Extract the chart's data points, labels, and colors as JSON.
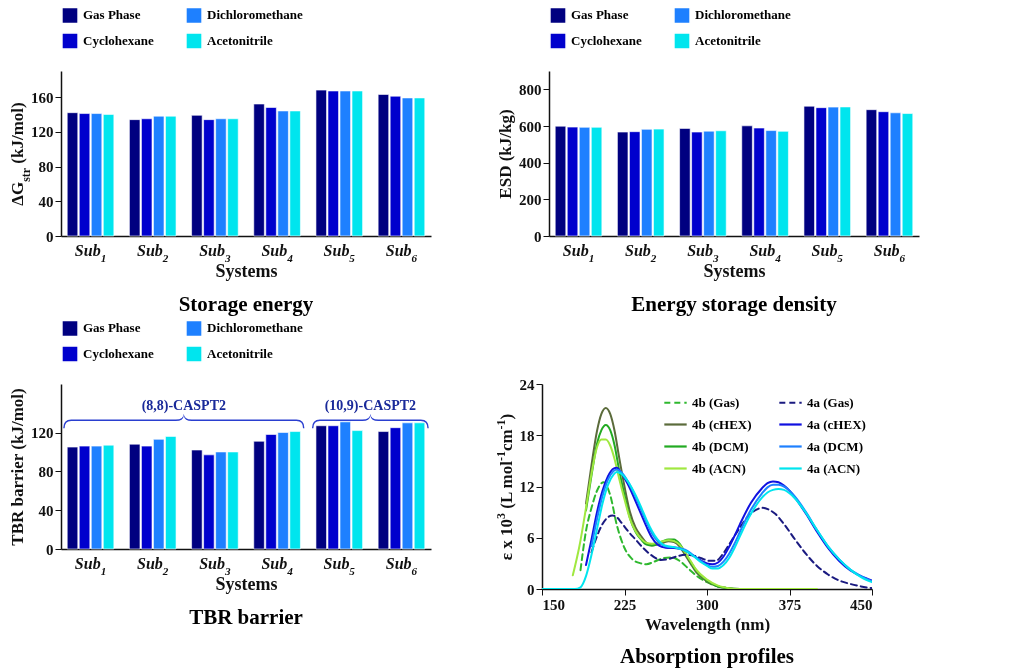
{
  "chart_data": [
    {
      "type": "bar",
      "title": "Storage energy",
      "xlabel": "Systems",
      "ylabel": "ΔG$_{str}$ (kJ/mol)",
      "categories": [
        "Sub$_{1}$",
        "Sub$_{2}$",
        "Sub$_{3}$",
        "Sub$_{4}$",
        "Sub$_{5}$",
        "Sub$_{6}$"
      ],
      "ylim": [
        0,
        190
      ],
      "yticks": [
        0,
        40,
        80,
        120,
        160
      ],
      "legend": "top",
      "series": [
        {
          "name": "Gas Phase",
          "color": "#000080",
          "values": [
            142,
            134,
            139,
            152,
            168,
            163
          ]
        },
        {
          "name": "Cyclohexane",
          "color": "#0000cd",
          "values": [
            141,
            135,
            134,
            148,
            167,
            161
          ]
        },
        {
          "name": "Dichloromethane",
          "color": "#1e80ff",
          "values": [
            141,
            138,
            135,
            144,
            167,
            159
          ]
        },
        {
          "name": "Acetonitrile",
          "color": "#00e5ee",
          "values": [
            140,
            138,
            135,
            144,
            167,
            159
          ]
        }
      ]
    },
    {
      "type": "bar",
      "title": "Energy storage density",
      "xlabel": "Systems",
      "ylabel": "ESD (kJ/kg)",
      "categories": [
        "Sub$_{1}$",
        "Sub$_{2}$",
        "Sub$_{3}$",
        "Sub$_{4}$",
        "Sub$_{5}$",
        "Sub$_{6}$"
      ],
      "ylim": [
        0,
        900
      ],
      "yticks": [
        0,
        200,
        400,
        600,
        800
      ],
      "legend": "top",
      "series": [
        {
          "name": "Gas Phase",
          "color": "#000080",
          "values": [
            599,
            567,
            587,
            601,
            708,
            689
          ]
        },
        {
          "name": "Cyclohexane",
          "color": "#0000cd",
          "values": [
            594,
            569,
            567,
            589,
            700,
            678
          ]
        },
        {
          "name": "Dichloromethane",
          "color": "#1e80ff",
          "values": [
            593,
            582,
            572,
            575,
            703,
            672
          ]
        },
        {
          "name": "Acetonitrile",
          "color": "#00e5ee",
          "values": [
            593,
            583,
            574,
            571,
            704,
            668
          ]
        }
      ]
    },
    {
      "type": "bar",
      "title": "TBR barrier",
      "xlabel": "Systems",
      "ylabel": "TBR barrier (kJ/mol)",
      "categories": [
        "Sub$_{1}$",
        "Sub$_{2}$",
        "Sub$_{3}$",
        "Sub$_{4}$",
        "Sub$_{5}$",
        "Sub$_{6}$"
      ],
      "ylim": [
        0,
        170
      ],
      "yticks": [
        0,
        40,
        80,
        120
      ],
      "legend": "top",
      "annotations": [
        "(8,8)-CASPT2",
        "(10,9)-CASPT2"
      ],
      "series": [
        {
          "name": "Gas Phase",
          "color": "#000080",
          "values": [
            105,
            108,
            102,
            111,
            127,
            121
          ]
        },
        {
          "name": "Cyclohexane",
          "color": "#0000cd",
          "values": [
            106,
            106,
            97,
            118,
            127,
            125
          ]
        },
        {
          "name": "Dichloromethane",
          "color": "#1e80ff",
          "values": [
            106,
            113,
            100,
            120,
            131,
            130
          ]
        },
        {
          "name": "Acetonitrile",
          "color": "#00e5ee",
          "values": [
            107,
            116,
            100,
            121,
            122,
            130
          ]
        }
      ]
    },
    {
      "type": "line",
      "title": "Absorption profiles",
      "xlabel": "Wavelength (nm)",
      "ylabel": "ε x 10$^{3}$ (L mol$^{-1}$cm$^{-1}$)",
      "xlim": [
        150,
        450
      ],
      "xticks": [
        150,
        225,
        300,
        375,
        450
      ],
      "ylim": [
        0,
        24
      ],
      "yticks": [
        0,
        6,
        12,
        18,
        24
      ],
      "legend": "top right",
      "marker": "none",
      "series": [
        {
          "name": "4b (Gas)",
          "color": "#2eb82e",
          "line_style": "dashed",
          "x": [
            185,
            190,
            195,
            200,
            206,
            212,
            218,
            225,
            232,
            240,
            245,
            252,
            260,
            268,
            275,
            283,
            290,
            300,
            310,
            320
          ],
          "values": [
            2.2,
            6.8,
            9.5,
            11.5,
            12.5,
            11.0,
            7.5,
            4.8,
            3.5,
            3.0,
            2.9,
            3.2,
            3.6,
            3.7,
            3.3,
            2.4,
            1.6,
            0.8,
            0.3,
            0.1
          ]
        },
        {
          "name": "4b (cHEX)",
          "color": "#5b6b3b",
          "line_style": "solid",
          "x": [
            190,
            195,
            200,
            204,
            208,
            212,
            216,
            220,
            225,
            230,
            235,
            240,
            245,
            250,
            255,
            260,
            265,
            270,
            275,
            280,
            285,
            290,
            300,
            310,
            320,
            330
          ],
          "values": [
            10,
            14.5,
            18.5,
            20.5,
            21.2,
            20.5,
            18.5,
            15.5,
            12,
            9,
            7.2,
            6.2,
            5.4,
            5.1,
            5.2,
            5.4,
            5.6,
            5.5,
            5,
            4,
            3,
            2,
            0.9,
            0.3,
            0.1,
            0
          ]
        },
        {
          "name": "4b (DCM)",
          "color": "#22aa22",
          "line_style": "solid",
          "x": [
            190,
            195,
            200,
            204,
            208,
            212,
            216,
            220,
            225,
            230,
            235,
            240,
            245,
            250,
            255,
            260,
            265,
            270,
            275,
            280,
            285,
            290,
            300,
            310,
            320,
            330
          ],
          "values": [
            9.2,
            13.3,
            17,
            18.6,
            19.2,
            18.6,
            16.8,
            14,
            11,
            8.3,
            6.7,
            5.8,
            5.2,
            5.1,
            5.3,
            5.6,
            5.8,
            5.8,
            5.3,
            4.3,
            3.2,
            2.2,
            1,
            0.3,
            0.1,
            0
          ]
        },
        {
          "name": "4b (ACN)",
          "color": "#a0e840",
          "line_style": "solid",
          "x": [
            178,
            184,
            190,
            195,
            200,
            204,
            208,
            212,
            216,
            220,
            225,
            230,
            235,
            240,
            245,
            250,
            255,
            260,
            265,
            270,
            275,
            280,
            285,
            290,
            300,
            310,
            320,
            330,
            400
          ],
          "values": [
            1.6,
            5,
            9.5,
            13.5,
            16.6,
            17.5,
            17.5,
            16.8,
            15.2,
            13,
            10.5,
            8.2,
            6.8,
            5.9,
            5.4,
            5.3,
            5.4,
            5.6,
            5.7,
            5.6,
            5.2,
            4.3,
            3.3,
            2.3,
            1.1,
            0.4,
            0.1,
            0,
            0
          ]
        },
        {
          "name": "4a (Gas)",
          "color": "#1a1a80",
          "line_style": "dashed",
          "x": [
            195,
            200,
            205,
            210,
            214,
            218,
            222,
            228,
            235,
            242,
            250,
            258,
            265,
            272,
            280,
            288,
            295,
            302,
            308,
            315,
            322,
            330,
            338,
            345,
            350,
            356,
            362,
            370,
            380,
            390,
            400,
            410,
            420,
            430,
            440,
            450
          ],
          "values": [
            4.3,
            6.2,
            7.6,
            8.4,
            8.6,
            8.4,
            7.8,
            6.8,
            5.8,
            4.8,
            3.9,
            3.4,
            3.5,
            3.8,
            4.0,
            3.9,
            3.6,
            3.3,
            3.3,
            4.2,
            5.6,
            7.2,
            8.6,
            9.3,
            9.5,
            9.3,
            8.8,
            7.6,
            5.8,
            4.1,
            2.7,
            1.7,
            1.0,
            0.6,
            0.3,
            0.1
          ]
        },
        {
          "name": "4a (cHEX)",
          "color": "#1010e0",
          "line_style": "solid",
          "x": [
            190,
            195,
            200,
            205,
            210,
            215,
            218,
            222,
            228,
            235,
            240,
            245,
            250,
            255,
            260,
            265,
            270,
            275,
            280,
            285,
            290,
            295,
            300,
            305,
            310,
            315,
            320,
            325,
            330,
            340,
            350,
            355,
            360,
            365,
            370,
            375,
            380,
            390,
            400,
            410,
            420,
            430,
            440,
            450
          ],
          "values": [
            2.8,
            5.8,
            9,
            11.5,
            13.2,
            14.1,
            14.2,
            13.6,
            12.3,
            10.3,
            8.8,
            7.3,
            6,
            5.2,
            4.9,
            4.8,
            4.8,
            4.7,
            4.5,
            4.1,
            3.7,
            3.3,
            3.0,
            2.9,
            3.1,
            3.8,
            4.9,
            6.2,
            7.6,
            10.1,
            11.8,
            12.4,
            12.6,
            12.5,
            12.1,
            11.5,
            10.7,
            8.8,
            6.7,
            4.8,
            3.3,
            2.2,
            1.5,
            1.0
          ]
        },
        {
          "name": "4a (DCM)",
          "color": "#1e80ff",
          "line_style": "solid",
          "x": [
            195,
            200,
            205,
            210,
            215,
            218,
            222,
            228,
            235,
            240,
            245,
            250,
            255,
            260,
            265,
            270,
            275,
            280,
            285,
            290,
            295,
            300,
            305,
            310,
            315,
            320,
            325,
            330,
            340,
            350,
            355,
            360,
            365,
            370,
            375,
            380,
            390,
            400,
            410,
            420,
            430,
            440,
            450
          ],
          "values": [
            5,
            8.2,
            10.9,
            12.8,
            13.8,
            14.0,
            13.7,
            12.6,
            10.8,
            9.3,
            7.8,
            6.5,
            5.6,
            5.1,
            4.9,
            4.9,
            4.8,
            4.6,
            4.2,
            3.7,
            3.2,
            2.8,
            2.6,
            2.7,
            3.2,
            4.1,
            5.3,
            6.7,
            9.3,
            11.2,
            11.9,
            12.2,
            12.2,
            12.0,
            11.5,
            10.8,
            9.0,
            6.9,
            5.0,
            3.5,
            2.3,
            1.5,
            0.9
          ]
        },
        {
          "name": "4a (ACN)",
          "color": "#00e5ee",
          "line_style": "solid",
          "x": [
            150,
            180,
            185,
            190,
            195,
            200,
            205,
            210,
            215,
            218,
            222,
            228,
            235,
            240,
            245,
            250,
            255,
            260,
            265,
            270,
            275,
            280,
            285,
            290,
            295,
            300,
            305,
            310,
            315,
            320,
            325,
            330,
            340,
            350,
            355,
            360,
            365,
            370,
            375,
            380,
            390,
            400,
            410,
            420,
            430,
            440,
            450
          ],
          "values": [
            0,
            0,
            0.2,
            1.5,
            4,
            7,
            10,
            12.2,
            13.4,
            13.7,
            13.5,
            12.6,
            11,
            9.6,
            8.1,
            6.8,
            5.8,
            5.2,
            5.0,
            4.9,
            4.7,
            4.5,
            4.1,
            3.6,
            3.1,
            2.7,
            2.4,
            2.4,
            2.8,
            3.6,
            4.8,
            6.2,
            8.8,
            10.7,
            11.3,
            11.6,
            11.7,
            11.6,
            11.2,
            10.6,
            8.9,
            6.9,
            5.0,
            3.5,
            2.3,
            1.4,
            0.8
          ]
        }
      ]
    }
  ]
}
